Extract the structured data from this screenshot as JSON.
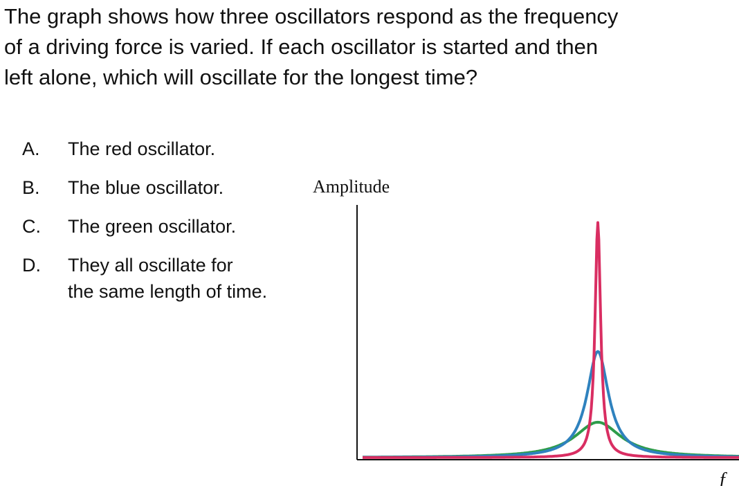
{
  "question": {
    "line1": "The graph shows how three oscillators respond as the frequency",
    "line2": "of a driving force is varied. If each oscillator is started and then",
    "line3": "left alone, which will oscillate for the longest time?"
  },
  "options": [
    {
      "letter": "A.",
      "lines": [
        "The red oscillator."
      ]
    },
    {
      "letter": "B.",
      "lines": [
        "The blue oscillator."
      ]
    },
    {
      "letter": "C.",
      "lines": [
        "The green oscillator."
      ]
    },
    {
      "letter": "D.",
      "lines": [
        "They all oscillate for",
        "the same length of time."
      ]
    }
  ],
  "graph": {
    "ylabel": "Amplitude",
    "xlabel": "f",
    "curves": [
      {
        "color": "#2e9c4a",
        "gamma": 0.075,
        "peak": 0.14
      },
      {
        "color": "#2f82be",
        "gamma": 0.035,
        "peak": 0.42
      },
      {
        "color": "#d92e62",
        "gamma": 0.009,
        "peak": 0.93
      }
    ]
  }
}
